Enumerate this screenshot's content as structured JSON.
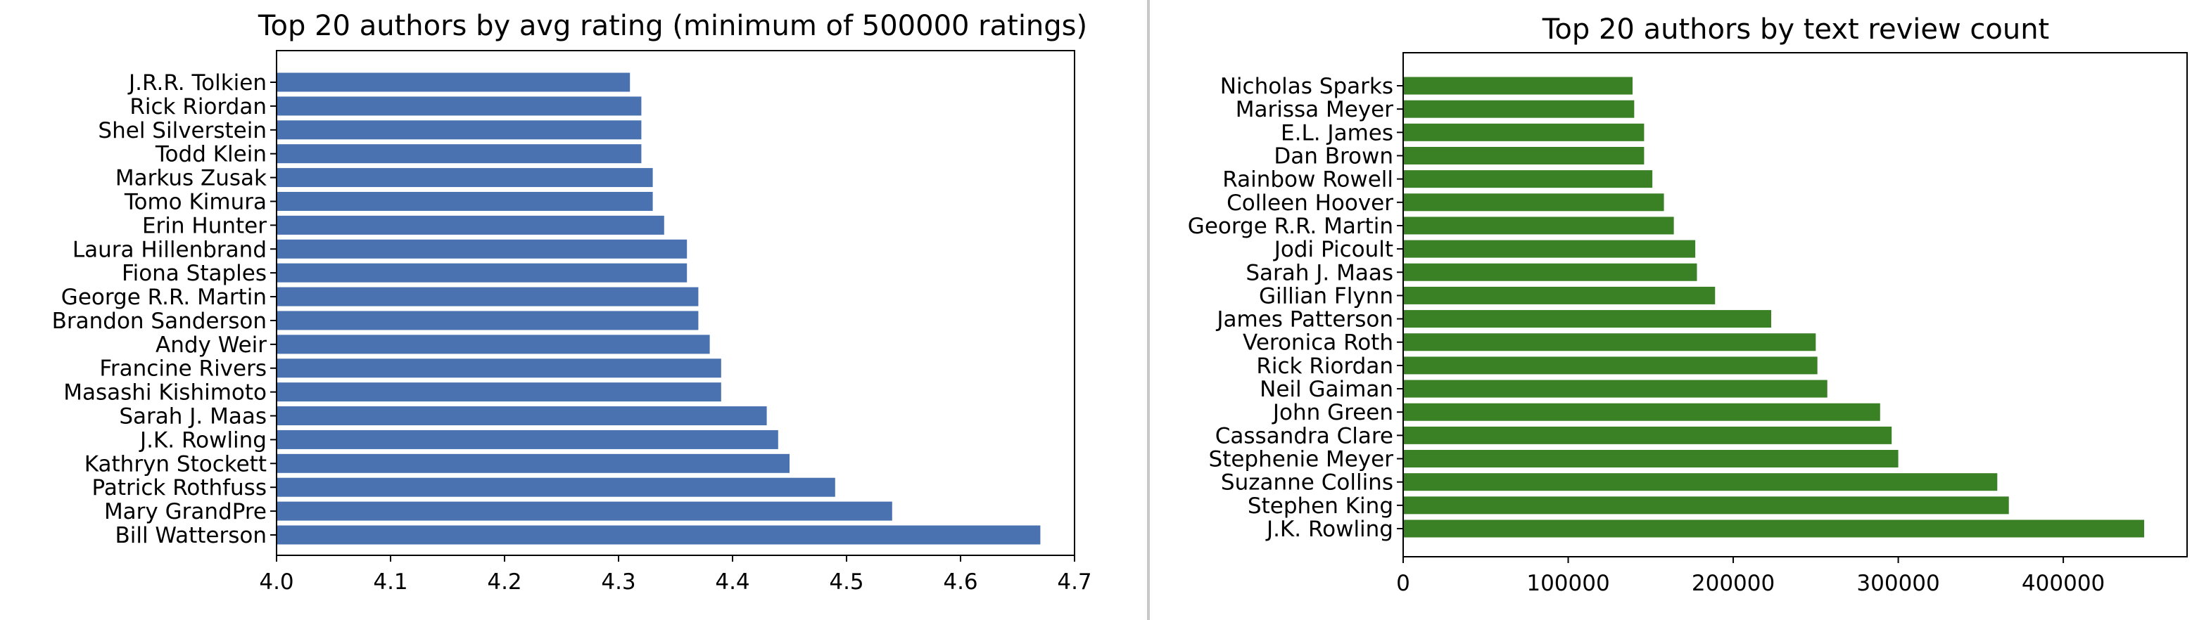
{
  "chart_data": [
    {
      "type": "bar",
      "orientation": "horizontal",
      "title": "Top 20 authors by avg rating (minimum of 500000 ratings)",
      "xlabel": "",
      "ylabel": "",
      "xlim": [
        4.0,
        4.7
      ],
      "xticks": [
        "4.0",
        "4.1",
        "4.2",
        "4.3",
        "4.4",
        "4.5",
        "4.6",
        "4.7"
      ],
      "color": "#4a72b0",
      "grid": false,
      "categories": [
        "J.R.R. Tolkien",
        "Rick Riordan",
        "Shel Silverstein",
        "Todd Klein",
        "Markus Zusak",
        "Tomo Kimura",
        "Erin Hunter",
        "Laura Hillenbrand",
        "Fiona Staples",
        "George R.R. Martin",
        "Brandon Sanderson",
        "Andy Weir",
        "Francine Rivers",
        "Masashi Kishimoto",
        "Sarah J. Maas",
        "J.K. Rowling",
        "Kathryn Stockett",
        "Patrick Rothfuss",
        "Mary GrandPre",
        "Bill Watterson"
      ],
      "values": [
        4.31,
        4.32,
        4.32,
        4.32,
        4.33,
        4.33,
        4.34,
        4.36,
        4.36,
        4.37,
        4.37,
        4.38,
        4.39,
        4.39,
        4.43,
        4.44,
        4.45,
        4.49,
        4.54,
        4.67
      ]
    },
    {
      "type": "bar",
      "orientation": "horizontal",
      "title": "Top 20 authors by text review count",
      "xlabel": "",
      "ylabel": "",
      "xlim": [
        0,
        475000
      ],
      "xticks": [
        "0",
        "100000",
        "200000",
        "300000",
        "400000"
      ],
      "color": "#3a8024",
      "grid": false,
      "categories": [
        "Nicholas Sparks",
        "Marissa Meyer",
        "E.L. James",
        "Dan Brown",
        "Rainbow Rowell",
        "Colleen Hoover",
        "George R.R. Martin",
        "Jodi Picoult",
        "Sarah J. Maas",
        "Gillian Flynn",
        "James Patterson",
        "Veronica Roth",
        "Rick Riordan",
        "Neil Gaiman",
        "John Green",
        "Cassandra Clare",
        "Stephenie Meyer",
        "Suzanne Collins",
        "Stephen King",
        "J.K. Rowling"
      ],
      "values": [
        139000,
        140000,
        146000,
        146000,
        151000,
        158000,
        164000,
        177000,
        178000,
        189000,
        223000,
        250000,
        251000,
        257000,
        289000,
        296000,
        300000,
        360000,
        367000,
        449000
      ]
    }
  ]
}
